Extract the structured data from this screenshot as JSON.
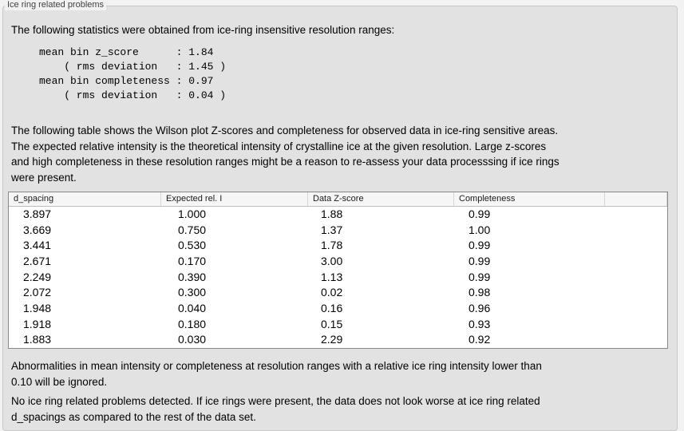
{
  "group_label": "Ice ring related problems",
  "intro": "The following statistics were obtained from ice-ring insensitive resolution ranges:",
  "stats_block": "mean bin z_score      : 1.84\n    ( rms deviation   : 1.45 )\nmean bin completeness : 0.97\n    ( rms deviation   : 0.04 )",
  "stats": {
    "mean_bin_z_score": "1.84",
    "z_score_rms_deviation": "1.45",
    "mean_bin_completeness": "0.97",
    "completeness_rms_deviation": "0.04"
  },
  "table_description": "The following table shows the Wilson plot Z-scores and completeness for observed data in ice-ring sensitive areas.\nThe expected relative intensity is the theoretical intensity of crystalline ice at the given resolution. Large z-scores\nand high completeness in these resolution ranges might be a reason to re-assess your data processsing if ice rings\nwere present.",
  "table": {
    "columns": [
      "d_spacing",
      "Expected rel. I",
      "Data Z-score",
      "Completeness"
    ],
    "rows": [
      [
        "3.897",
        "1.000",
        "1.88",
        "0.99"
      ],
      [
        "3.669",
        "0.750",
        "1.37",
        "1.00"
      ],
      [
        "3.441",
        "0.530",
        "1.78",
        "0.99"
      ],
      [
        "2.671",
        "0.170",
        "3.00",
        "0.99"
      ],
      [
        "2.249",
        "0.390",
        "1.13",
        "0.99"
      ],
      [
        "2.072",
        "0.300",
        "0.02",
        "0.98"
      ],
      [
        "1.948",
        "0.040",
        "0.16",
        "0.96"
      ],
      [
        "1.918",
        "0.180",
        "0.15",
        "0.93"
      ],
      [
        "1.883",
        "0.030",
        "2.29",
        "0.92"
      ]
    ]
  },
  "abnormalities_note": "Abnormalities in mean intensity or completeness at resolution ranges with a relative ice ring intensity lower than\n0.10 will be ignored.",
  "conclusion": "No ice ring related problems detected. If ice rings were present, the data does not look worse at ice ring related\nd_spacings as compared to the rest of the data set.",
  "colors": {
    "window_bg": "#f2f2f2",
    "panel_bg": "#e2e2e2",
    "panel_border": "#c8c8c8",
    "table_bg": "#ffffff",
    "table_border": "#888888",
    "header_bg": "#f6f6f6",
    "header_separator": "#d6d6d6",
    "text": "#000000"
  }
}
